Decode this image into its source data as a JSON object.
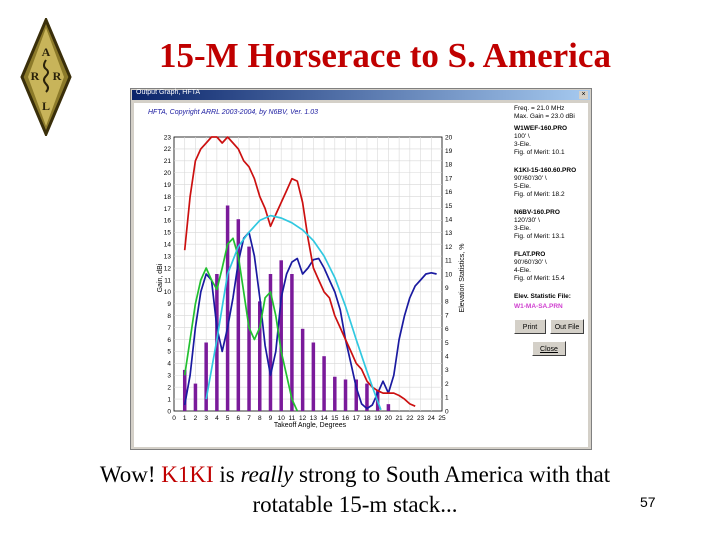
{
  "slide": {
    "title": "15-M Horserace to S. America",
    "caption_part1": "Wow! ",
    "caption_k1ki": "K1KI",
    "caption_part2": " is ",
    "caption_really": "really",
    "caption_part3": " strong to South America with that",
    "caption_line2": "rotatable 15-m stack...",
    "slide_number": "57",
    "logo_letters": [
      "A",
      "R",
      "R",
      "L"
    ]
  },
  "window": {
    "title": "Output Graph, HFTA",
    "header": "HFTA, Copyright ARRL 2003-2004, by N6BV, Ver. 1.03"
  },
  "panel": {
    "freq": "Freq. = 21.0 MHz",
    "maxgain": "Max. Gain = 23.0 dBi",
    "stations": [
      {
        "name": "W1WEF-160.PRO",
        "lines": [
          "100' \\",
          "3-Ele.",
          "Fig. of Merit: 10.1"
        ],
        "color": "#1a1aa0"
      },
      {
        "name": "K1KI-15-160.60.PRO",
        "lines": [
          "90'/60'/30' \\",
          "5-Ele.",
          "Fig. of Merit: 18.2"
        ],
        "color": "#cc1010"
      },
      {
        "name": "N6BV-160.PRO",
        "lines": [
          "120'/30' \\",
          "3-Ele.",
          "Fig. of Merit: 13.1"
        ],
        "color": "#22c030"
      },
      {
        "name": "FLAT.PRO",
        "lines": [
          "90'/60'/30' \\",
          "4-Ele.",
          "Fig. of Merit: 15.4"
        ],
        "color": "#30c8e0"
      }
    ],
    "elev_label": "Elev. Statistic File:",
    "elev_file": "W1-MA-SA.PRN",
    "print_btn": "Print",
    "outfile_btn": "Out File",
    "close_btn": "Close"
  },
  "chart_data": {
    "type": "line",
    "title": "",
    "xlabel": "Takeoff Angle, Degrees",
    "ylabel": "Gain, dBi",
    "ylabel_right": "Elevation Statistics, %",
    "xlim": [
      0,
      25
    ],
    "ylim": [
      0,
      23
    ],
    "ylim_right": [
      0,
      20
    ],
    "grid": true,
    "x_ticks": [
      "0",
      "1",
      "2",
      "3",
      "4",
      "5",
      "6",
      "7",
      "8",
      "9",
      "10",
      "11",
      "12",
      "13",
      "14",
      "15",
      "16",
      "17",
      "18",
      "19",
      "20",
      "21",
      "22",
      "23",
      "24",
      "25"
    ],
    "y_ticks": [
      "0",
      "1",
      "2",
      "3",
      "4",
      "5",
      "6",
      "7",
      "8",
      "9",
      "10",
      "11",
      "12",
      "13",
      "14",
      "15",
      "16",
      "17",
      "18",
      "19",
      "20",
      "21",
      "22",
      "23"
    ],
    "y_right_ticks": [
      "0",
      "1",
      "2",
      "3",
      "4",
      "5",
      "6",
      "7",
      "8",
      "9",
      "10",
      "11",
      "12",
      "13",
      "14",
      "15",
      "16",
      "17",
      "18",
      "19",
      "20"
    ],
    "series": [
      {
        "name": "W1WEF-160.PRO",
        "color": "#1a1aa0",
        "points": [
          [
            1,
            0.5
          ],
          [
            1.5,
            3
          ],
          [
            2,
            7
          ],
          [
            2.5,
            10
          ],
          [
            3,
            11.5
          ],
          [
            3.5,
            11
          ],
          [
            4,
            7
          ],
          [
            4.5,
            5
          ],
          [
            5,
            7
          ],
          [
            5.5,
            9.5
          ],
          [
            6,
            12.5
          ],
          [
            6.5,
            14.5
          ],
          [
            7,
            15
          ],
          [
            7.5,
            13
          ],
          [
            8,
            9.5
          ],
          [
            8.5,
            5.5
          ],
          [
            9,
            3
          ],
          [
            9.5,
            5
          ],
          [
            10,
            9.5
          ],
          [
            10.5,
            11.5
          ],
          [
            11,
            12.5
          ],
          [
            11.5,
            12.8
          ],
          [
            12,
            11.5
          ],
          [
            12.5,
            12
          ],
          [
            13,
            12.7
          ],
          [
            13.5,
            12.8
          ],
          [
            14,
            12
          ],
          [
            14.5,
            11
          ],
          [
            15,
            10
          ],
          [
            15.5,
            8.5
          ],
          [
            16,
            6
          ],
          [
            16.5,
            4
          ],
          [
            17,
            2
          ],
          [
            17.5,
            0.6
          ],
          [
            18,
            0.2
          ],
          [
            18.5,
            0.5
          ],
          [
            19,
            1.5
          ],
          [
            19.5,
            2.5
          ],
          [
            20,
            1.5
          ],
          [
            20.5,
            3
          ],
          [
            21,
            6
          ],
          [
            21.5,
            8
          ],
          [
            22,
            9.5
          ],
          [
            22.5,
            10.5
          ],
          [
            23,
            11
          ],
          [
            23.5,
            11.5
          ],
          [
            24,
            11.6
          ],
          [
            24.5,
            11.5
          ]
        ]
      },
      {
        "name": "K1KI-15-160.60.PRO",
        "color": "#cc1010",
        "points": [
          [
            1,
            13.5
          ],
          [
            1.5,
            18
          ],
          [
            2,
            21
          ],
          [
            2.5,
            22
          ],
          [
            3,
            22.5
          ],
          [
            3.5,
            23
          ],
          [
            4,
            23
          ],
          [
            4.5,
            22.5
          ],
          [
            5,
            23
          ],
          [
            5.5,
            22.5
          ],
          [
            6,
            22
          ],
          [
            6.5,
            21
          ],
          [
            7,
            20.5
          ],
          [
            7.5,
            19.5
          ],
          [
            8,
            18
          ],
          [
            8.5,
            17
          ],
          [
            9,
            15.5
          ],
          [
            9.5,
            16.5
          ],
          [
            10,
            17.5
          ],
          [
            10.5,
            18.5
          ],
          [
            11,
            19.5
          ],
          [
            11.5,
            19.3
          ],
          [
            12,
            17.5
          ],
          [
            12.5,
            14.5
          ],
          [
            13,
            12
          ],
          [
            13.5,
            11
          ],
          [
            14,
            10
          ],
          [
            14.5,
            9.5
          ],
          [
            15,
            8
          ],
          [
            15.5,
            7
          ],
          [
            16,
            6
          ],
          [
            16.5,
            5
          ],
          [
            17,
            4
          ],
          [
            17.5,
            3.5
          ],
          [
            18,
            2.5
          ],
          [
            18.5,
            2
          ],
          [
            19,
            1.7
          ],
          [
            19.5,
            1.5
          ],
          [
            20,
            1.5
          ],
          [
            20.5,
            1.5
          ],
          [
            21,
            1.3
          ],
          [
            21.5,
            1
          ],
          [
            22,
            0.6
          ],
          [
            22.5,
            0.4
          ]
        ]
      },
      {
        "name": "N6BV-160.PRO",
        "color": "#22c030",
        "points": [
          [
            1,
            3
          ],
          [
            1.5,
            6
          ],
          [
            2,
            9
          ],
          [
            2.5,
            11
          ],
          [
            3,
            12
          ],
          [
            3.5,
            11
          ],
          [
            4,
            10.2
          ],
          [
            4.5,
            12
          ],
          [
            5,
            14
          ],
          [
            5.5,
            14.5
          ],
          [
            6,
            13
          ],
          [
            6.5,
            10
          ],
          [
            7,
            7
          ],
          [
            7.5,
            6
          ],
          [
            8,
            7
          ],
          [
            8.5,
            9.5
          ],
          [
            9,
            10
          ],
          [
            9.5,
            8
          ],
          [
            10,
            5
          ],
          [
            10.5,
            3
          ],
          [
            11,
            1
          ],
          [
            11.5,
            0
          ]
        ]
      },
      {
        "name": "FLAT.PRO",
        "color": "#30c8e0",
        "points": [
          [
            3,
            1
          ],
          [
            4,
            6
          ],
          [
            5,
            11.5
          ],
          [
            6,
            13.8
          ],
          [
            7,
            15
          ],
          [
            8,
            16
          ],
          [
            9,
            16.4
          ],
          [
            10,
            16.2
          ],
          [
            11,
            15.8
          ],
          [
            12,
            15.2
          ],
          [
            13,
            14.3
          ],
          [
            14,
            13
          ],
          [
            15,
            11.2
          ],
          [
            16,
            8.8
          ],
          [
            17,
            6
          ],
          [
            18,
            3.3
          ],
          [
            18.8,
            1.3
          ],
          [
            19.3,
            0.1
          ]
        ]
      }
    ],
    "bars": {
      "name": "W1-MA-SA.PRN",
      "axis": "right",
      "color": "#7a1a9a",
      "x": [
        1,
        2,
        3,
        4,
        5,
        6,
        7,
        8,
        9,
        10,
        11,
        12,
        13,
        14,
        15,
        16,
        17,
        18,
        19,
        20
      ],
      "values": [
        3,
        2,
        5,
        10,
        15,
        14,
        12,
        8,
        10,
        11,
        10,
        6,
        5,
        4,
        2.5,
        2.3,
        2.3,
        2,
        1.5,
        0.5
      ]
    }
  }
}
